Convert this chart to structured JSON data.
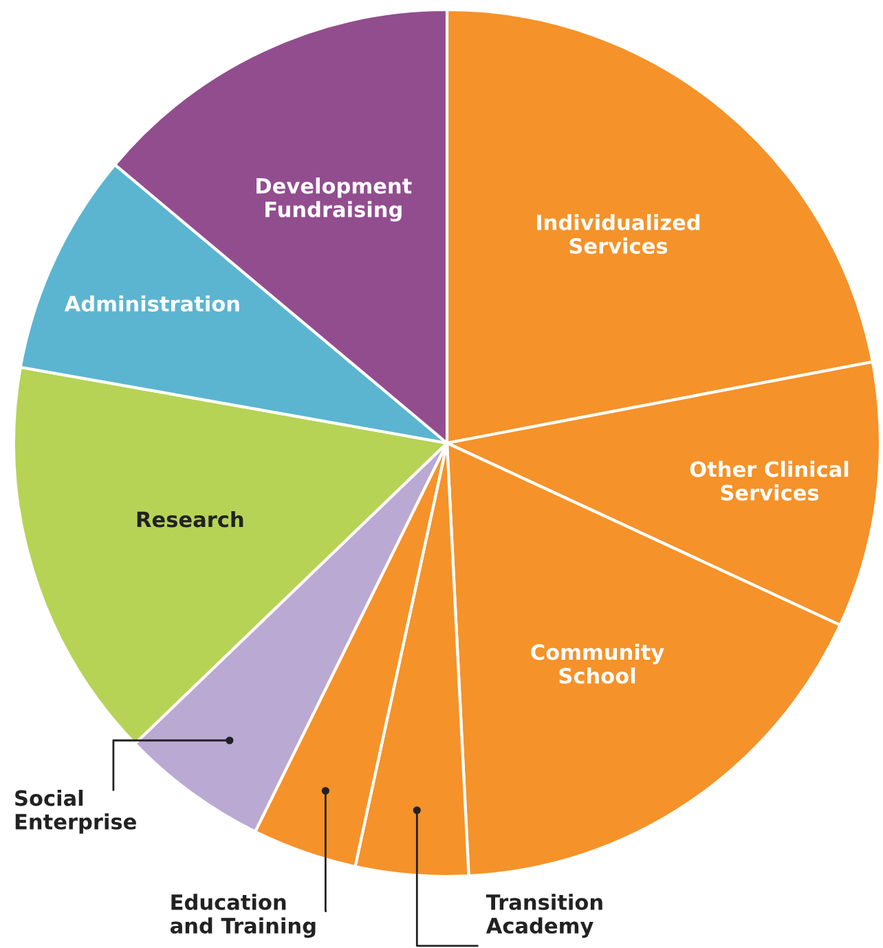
{
  "chart_data": {
    "type": "pie",
    "categories": [
      "Individualized\nServices",
      "Other Clinical\nServices",
      "Community\nSchool",
      "Transition\nAcademy",
      "Education\nand Training",
      "Social\nEnterprise",
      "Research",
      "Administration",
      "Development\nFundraising"
    ],
    "values": [
      22.0,
      9.9,
      17.3,
      4.2,
      3.9,
      5.5,
      15.0,
      8.3,
      13.9
    ],
    "colors": [
      "#f5922a",
      "#f5922a",
      "#f5922a",
      "#f5922a",
      "#f5922a",
      "#b9a9d3",
      "#b6d356",
      "#5bb5d0",
      "#924d8f"
    ],
    "legend": false
  }
}
